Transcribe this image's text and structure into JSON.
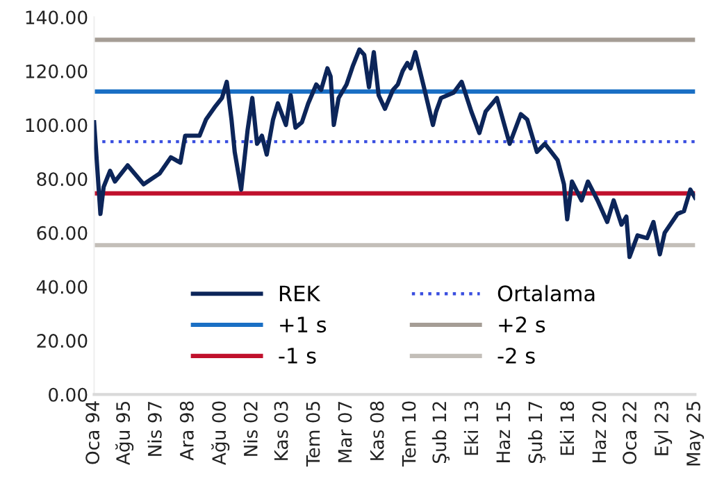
{
  "chart_data": {
    "type": "line",
    "x": [
      "1994-01",
      "1994-05",
      "1994-07",
      "1994-11",
      "1995-02",
      "1995-10",
      "1996-08",
      "1997-06",
      "1998-01",
      "1998-07",
      "1998-10",
      "1999-07",
      "1999-11",
      "2000-05",
      "2000-09",
      "2000-12",
      "2001-03",
      "2001-05",
      "2001-09",
      "2002-01",
      "2002-04",
      "2002-07",
      "2002-10",
      "2003-01",
      "2003-05",
      "2003-08",
      "2004-01",
      "2004-04",
      "2004-07",
      "2004-11",
      "2005-03",
      "2005-08",
      "2005-11",
      "2006-03",
      "2006-05",
      "2006-07",
      "2006-10",
      "2007-03",
      "2007-07",
      "2007-11",
      "2008-02",
      "2008-05",
      "2008-08",
      "2008-11",
      "2009-03",
      "2009-08",
      "2009-11",
      "2010-02",
      "2010-05",
      "2010-07",
      "2010-10",
      "2011-03",
      "2011-09",
      "2011-11",
      "2012-02",
      "2012-10",
      "2013-03",
      "2013-09",
      "2014-02",
      "2014-06",
      "2015-01",
      "2015-09",
      "2016-04",
      "2016-08",
      "2017-02",
      "2017-07",
      "2017-11",
      "2018-03",
      "2018-07",
      "2018-09",
      "2018-12",
      "2019-06",
      "2019-10",
      "2020-04",
      "2020-10",
      "2021-02",
      "2021-07",
      "2021-10",
      "2021-12",
      "2022-05",
      "2022-11",
      "2023-03",
      "2023-07",
      "2023-10",
      "2024-06",
      "2024-10",
      "2025-02",
      "2025-05"
    ],
    "series": [
      {
        "name": "REK",
        "color": "#0c2559",
        "values": [
          101,
          67,
          77,
          83,
          79,
          85,
          78,
          82,
          88,
          86,
          96,
          96,
          102,
          107,
          110,
          116,
          102,
          90,
          76,
          98,
          110,
          93,
          96,
          89,
          102,
          108,
          100,
          111,
          99,
          101,
          108,
          115,
          113,
          121,
          118,
          100,
          110,
          115,
          122,
          128,
          126,
          114,
          127,
          111,
          106,
          113,
          115,
          120,
          123,
          121,
          127,
          115,
          100,
          105,
          110,
          112,
          116,
          105,
          97,
          105,
          110,
          93,
          104,
          102,
          90,
          93,
          90,
          87,
          78,
          65,
          79,
          72,
          79,
          72,
          64,
          72,
          63,
          66,
          51,
          59,
          58,
          64,
          52,
          60,
          67,
          68,
          76,
          73
        ]
      }
    ],
    "xlim": [
      "1994-01",
      "2025-05"
    ],
    "xticks": [
      {
        "value": "1994-01",
        "label": "Oca 94"
      },
      {
        "value": "1995-08",
        "label": "Ağu 95"
      },
      {
        "value": "1997-04",
        "label": "Nis 97"
      },
      {
        "value": "1998-12",
        "label": "Ara 98"
      },
      {
        "value": "2000-08",
        "label": "Ağu 00"
      },
      {
        "value": "2002-04",
        "label": "Nis 02"
      },
      {
        "value": "2003-11",
        "label": "Kas 03"
      },
      {
        "value": "2005-07",
        "label": "Tem 05"
      },
      {
        "value": "2007-03",
        "label": "Mar 07"
      },
      {
        "value": "2008-11",
        "label": "Kas 08"
      },
      {
        "value": "2010-07",
        "label": "Tem 10"
      },
      {
        "value": "2012-02",
        "label": "Şub 12"
      },
      {
        "value": "2013-10",
        "label": "Eki 13"
      },
      {
        "value": "2015-06",
        "label": "Haz 15"
      },
      {
        "value": "2017-02",
        "label": "Şub 17"
      },
      {
        "value": "2018-10",
        "label": "Eki 18"
      },
      {
        "value": "2020-06",
        "label": "Haz 20"
      },
      {
        "value": "2022-01",
        "label": "Oca 22"
      },
      {
        "value": "2023-09",
        "label": "Eyl 23"
      },
      {
        "value": "2025-05",
        "label": "May 25"
      }
    ],
    "ylim": [
      0,
      140
    ],
    "yticks": [
      {
        "value": 0,
        "label": "0.00"
      },
      {
        "value": 20,
        "label": "20.00"
      },
      {
        "value": 40,
        "label": "40.00"
      },
      {
        "value": 60,
        "label": "60.00"
      },
      {
        "value": 80,
        "label": "80.00"
      },
      {
        "value": 100,
        "label": "100.00"
      },
      {
        "value": 120,
        "label": "120.00"
      },
      {
        "value": 140,
        "label": "140.00"
      }
    ],
    "ref_lines": [
      {
        "axis": "y",
        "value": 93.8,
        "label": "Ortalama",
        "color": "#3a4fe0",
        "line_style": "dotted"
      },
      {
        "axis": "y",
        "value": 112.4,
        "label": "+1 s",
        "color": "#1a6fc4"
      },
      {
        "axis": "y",
        "value": 131.6,
        "label": "+2 s",
        "color": "#a59d95"
      },
      {
        "axis": "y",
        "value": 74.6,
        "label": "-1 s",
        "color": "#c0102c"
      },
      {
        "axis": "y",
        "value": 55.4,
        "label": "-2 s",
        "color": "#c3beb8"
      }
    ],
    "legend": "bottom",
    "grid": false
  }
}
